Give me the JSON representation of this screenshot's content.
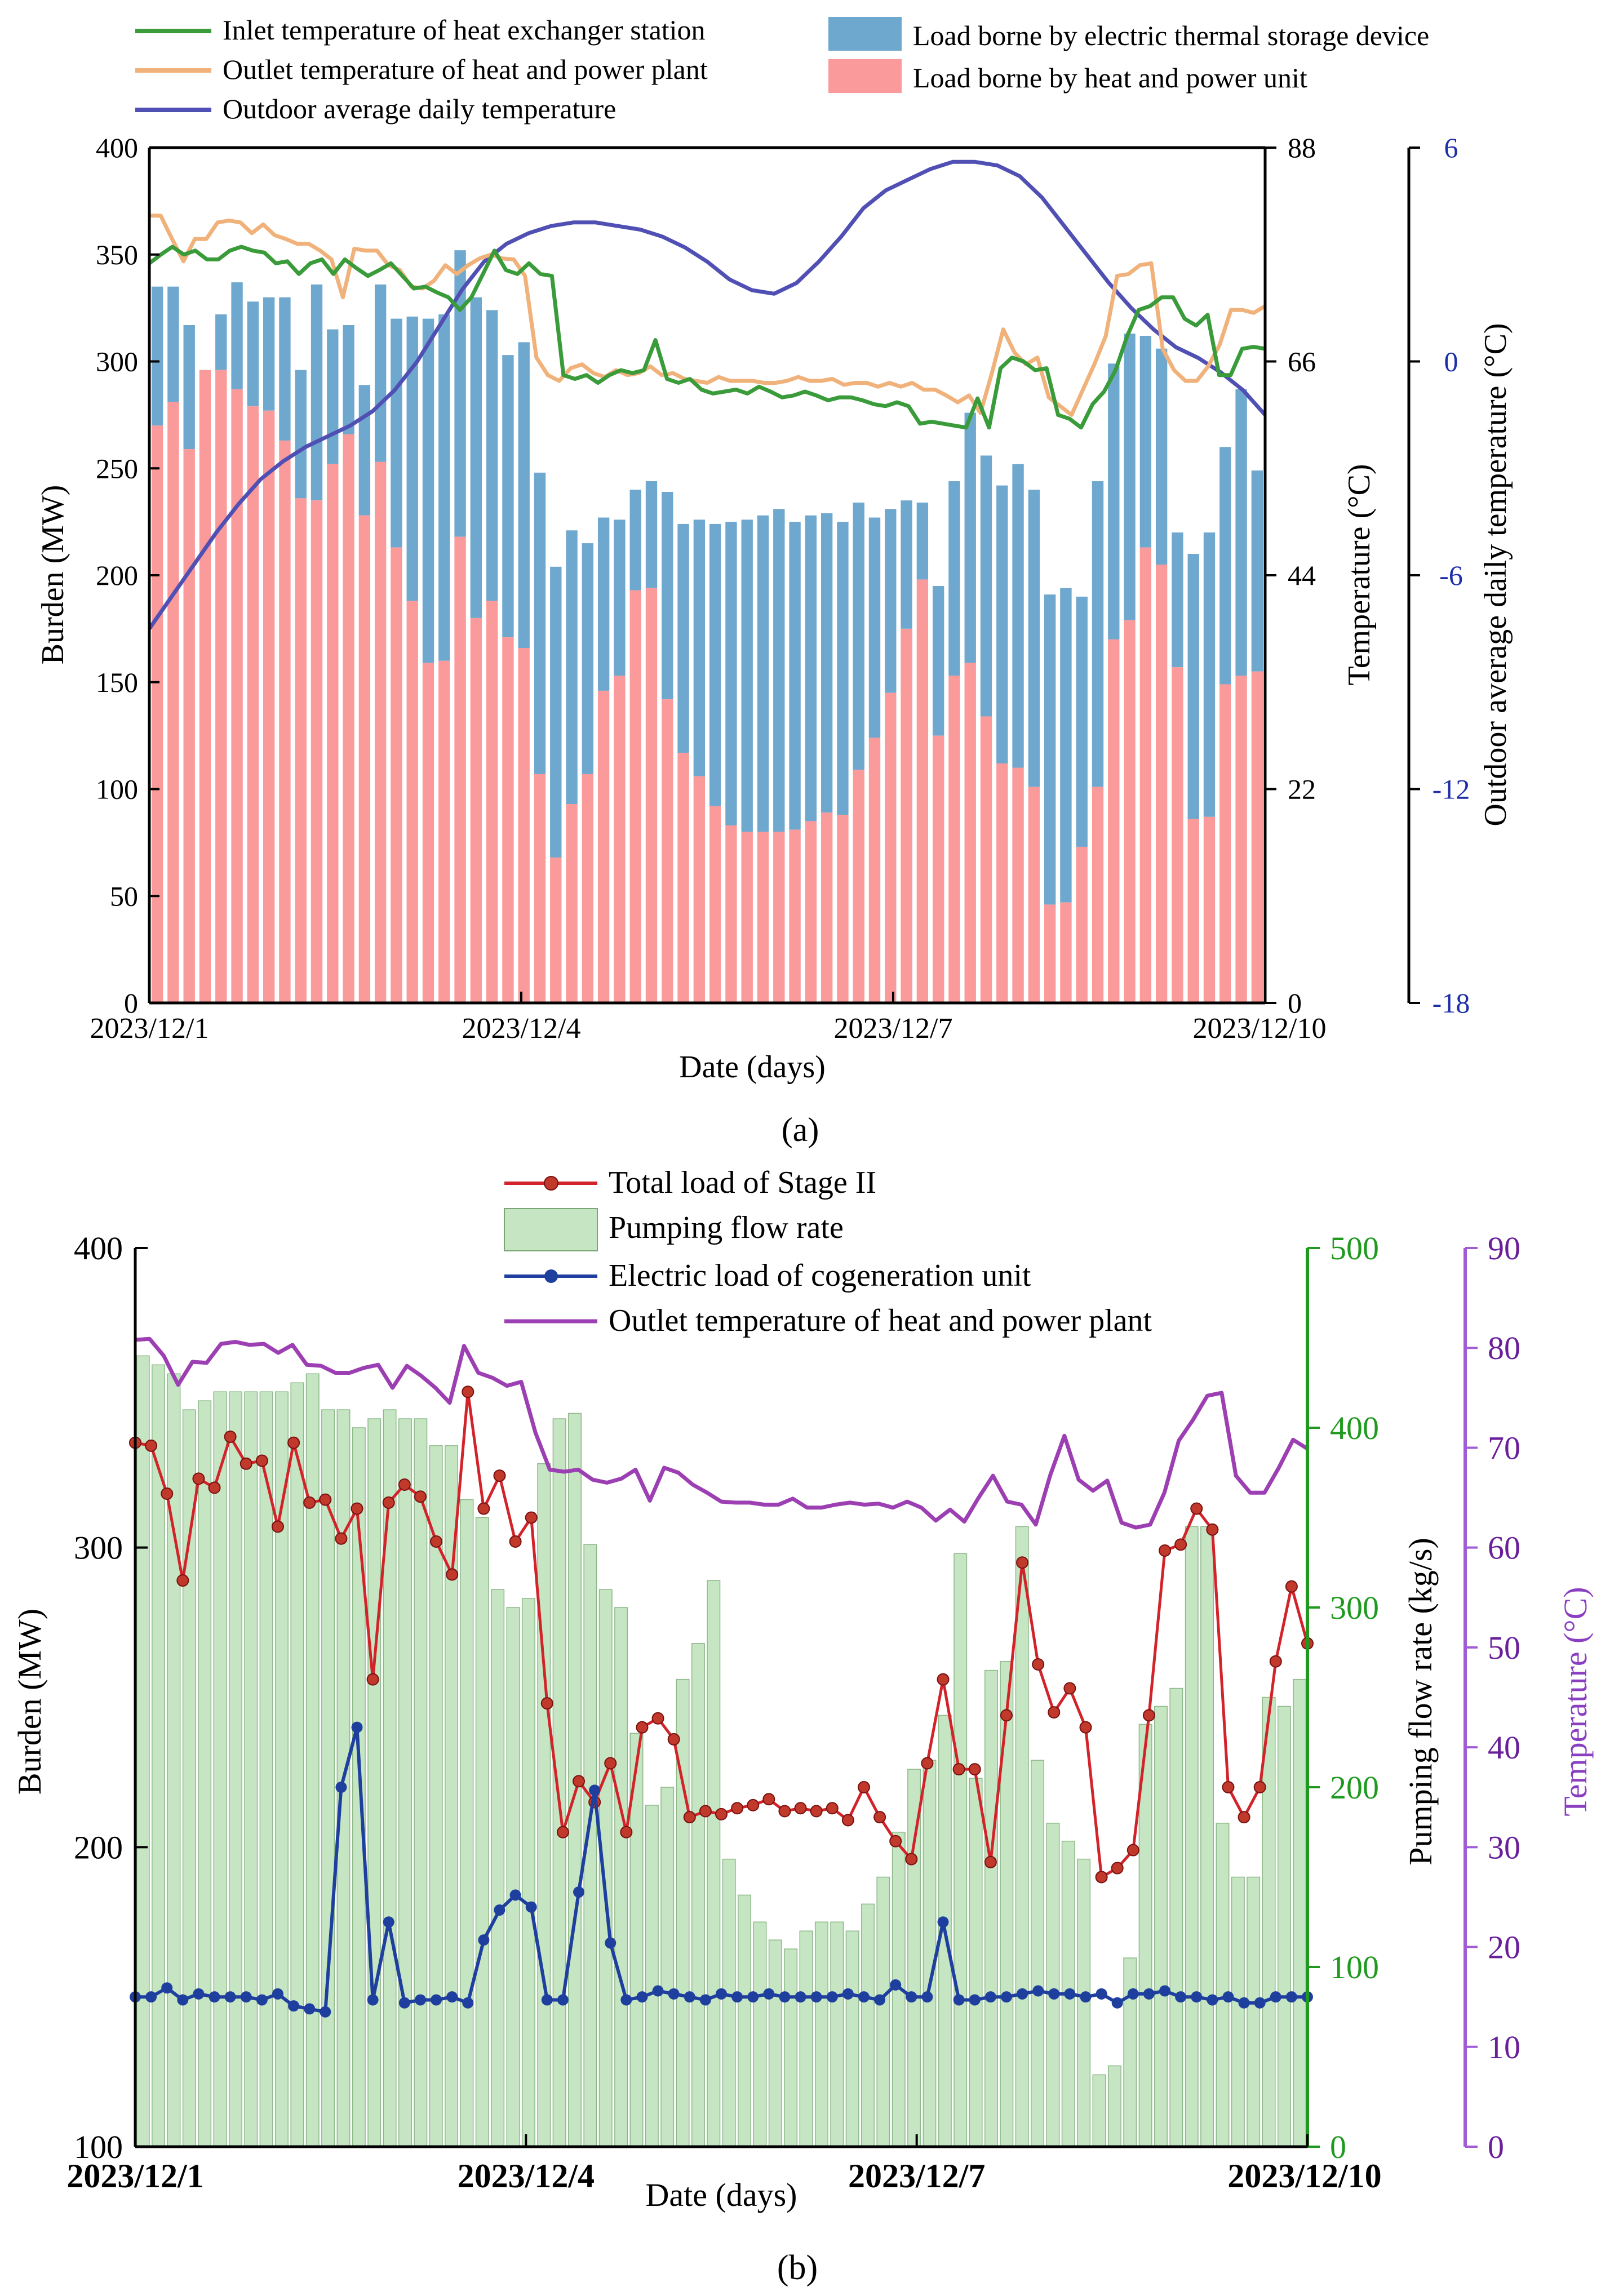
{
  "figure_labels": {
    "a": "(a)",
    "b": "(b)"
  },
  "chart_data": [
    {
      "type": "bar",
      "panel": "a",
      "title": "",
      "xlabel": "Date (days)",
      "ylabel": "Burden (MW)",
      "y2label": "Temperature (°C)",
      "y3label": "Outdoor average daily temperature (°C)",
      "x_ticks": [
        "2023/12/1",
        "2023/12/4",
        "2023/12/7",
        "2023/12/10"
      ],
      "ylim": [
        0,
        400
      ],
      "y_ticks": [
        0,
        50,
        100,
        150,
        200,
        250,
        300,
        350,
        400
      ],
      "y2lim": [
        0,
        88
      ],
      "y2_ticks": [
        0,
        22,
        44,
        66,
        88
      ],
      "y3lim": [
        -18,
        6
      ],
      "y3_ticks": [
        -18,
        -12,
        -6,
        0,
        6
      ],
      "legend": [
        {
          "label": "Inlet temperature of heat exchanger station",
          "kind": "line",
          "color": "#3a9b3a"
        },
        {
          "label": "Outlet temperature of heat and power plant",
          "kind": "line",
          "color": "#f0b27a"
        },
        {
          "label": "Outdoor average daily temperature",
          "kind": "line",
          "color": "#5050b4"
        },
        {
          "label": "Load borne by electric thermal storage device",
          "kind": "bar",
          "color": "#6fa8ce"
        },
        {
          "label": "Load borne by heat and power unit",
          "kind": "bar",
          "color": "#fb9a9a"
        }
      ],
      "series": [
        {
          "name": "Load borne by heat and power unit",
          "axis": "y",
          "stack": 0,
          "color": "#fb9a9a",
          "values": [
            270,
            281,
            259,
            296,
            296,
            287,
            279,
            277,
            263,
            236,
            235,
            252,
            266,
            228,
            253,
            213,
            188,
            159,
            160,
            218,
            180,
            188,
            171,
            166,
            107,
            68,
            93,
            107,
            146,
            153,
            193,
            194,
            142,
            117,
            106,
            92,
            83,
            80,
            80,
            80,
            81,
            85,
            89,
            88,
            109,
            124,
            145,
            175,
            198,
            125,
            153,
            159,
            134,
            112,
            110,
            101,
            46,
            47,
            73,
            101,
            170,
            179,
            213,
            205,
            157,
            86,
            87,
            149,
            153,
            155
          ]
        },
        {
          "name": "Load borne by electric thermal storage device",
          "axis": "y",
          "stack": 1,
          "color": "#6fa8ce",
          "values": [
            65,
            54,
            58,
            -7,
            26,
            50,
            49,
            53,
            67,
            60,
            101,
            63,
            51,
            61,
            83,
            107,
            133,
            161,
            162,
            134,
            150,
            136,
            132,
            143,
            141,
            136,
            128,
            108,
            81,
            73,
            47,
            50,
            97,
            107,
            120,
            132,
            142,
            146,
            148,
            151,
            144,
            143,
            140,
            137,
            125,
            103,
            86,
            60,
            36,
            70,
            91,
            117,
            122,
            130,
            142,
            139,
            145,
            147,
            117,
            143,
            129,
            134,
            99,
            101,
            63,
            124,
            133,
            111,
            134,
            94
          ]
        },
        {
          "name": "Inlet temperature of heat exchanger station",
          "axis": "y2",
          "type": "line",
          "color": "#3a9b3a",
          "values": [
            76.1,
            77.0,
            77.8,
            77.0,
            77.4,
            76.5,
            76.5,
            77.4,
            77.8,
            77.4,
            77.2,
            76.1,
            76.3,
            75.0,
            76.1,
            76.5,
            75.0,
            76.5,
            75.6,
            74.8,
            75.4,
            76.1,
            74.8,
            73.5,
            73.7,
            73.1,
            72.6,
            71.3,
            72.6,
            75.0,
            77.4,
            75.4,
            75.0,
            76.1,
            75.0,
            74.8,
            64.6,
            64.2,
            64.6,
            63.8,
            64.6,
            65.1,
            64.8,
            65.1,
            68.2,
            64.2,
            63.8,
            64.2,
            63.1,
            62.7,
            62.9,
            63.1,
            62.7,
            63.4,
            62.9,
            62.3,
            62.5,
            62.9,
            62.5,
            62.0,
            62.3,
            62.3,
            62.0,
            61.6,
            61.4,
            61.8,
            61.4,
            59.6,
            59.8,
            59.6,
            59.4,
            59.2,
            62.2,
            59.2,
            65.3,
            66.4,
            66.0,
            65.1,
            65.3,
            60.5,
            60.1,
            59.2,
            61.6,
            62.9,
            65.1,
            68.6,
            71.3,
            71.7,
            72.6,
            72.6,
            70.4,
            69.7,
            70.8,
            64.6,
            64.6,
            67.3,
            67.5,
            67.3
          ]
        },
        {
          "name": "Outlet temperature of heat and power plant",
          "axis": "y2",
          "type": "line",
          "color": "#f0b27a",
          "values": [
            81.0,
            81.0,
            78.6,
            76.3,
            78.6,
            78.6,
            80.3,
            80.5,
            80.3,
            79.2,
            80.1,
            79.0,
            78.6,
            78.1,
            78.1,
            77.4,
            76.5,
            72.6,
            77.6,
            77.4,
            77.4,
            75.9,
            75.4,
            73.7,
            73.5,
            74.3,
            75.9,
            75.0,
            75.9,
            76.6,
            77.0,
            76.6,
            76.5,
            74.8,
            66.4,
            64.6,
            64.0,
            65.3,
            65.7,
            64.8,
            64.4,
            65.1,
            64.6,
            64.8,
            65.5,
            64.6,
            64.8,
            64.2,
            64.0,
            63.8,
            64.4,
            64.0,
            64.0,
            64.0,
            63.8,
            63.8,
            64.0,
            64.4,
            64.0,
            64.0,
            64.2,
            63.6,
            63.8,
            63.8,
            63.4,
            63.8,
            63.4,
            63.8,
            63.1,
            63.1,
            62.5,
            61.8,
            62.5,
            60.7,
            64.8,
            69.3,
            66.9,
            65.7,
            66.4,
            62.3,
            61.4,
            60.5,
            63.1,
            65.7,
            68.6,
            74.8,
            75.0,
            75.9,
            76.1,
            67.3,
            65.1,
            64.0,
            64.0,
            65.5,
            67.7,
            71.3,
            71.3,
            71.0,
            71.7
          ]
        },
        {
          "name": "Outdoor average daily temperature",
          "axis": "y3",
          "type": "line",
          "color": "#5050b4",
          "values": [
            -7.5,
            -6.6,
            -5.7,
            -4.8,
            -4.0,
            -3.3,
            -2.8,
            -2.4,
            -2.1,
            -1.8,
            -1.4,
            -0.8,
            0.0,
            1.0,
            2.0,
            2.8,
            3.3,
            3.6,
            3.8,
            3.9,
            3.9,
            3.8,
            3.7,
            3.5,
            3.2,
            2.8,
            2.3,
            2.0,
            1.9,
            2.2,
            2.8,
            3.5,
            4.3,
            4.8,
            5.1,
            5.4,
            5.6,
            5.6,
            5.5,
            5.2,
            4.6,
            3.8,
            3.0,
            2.2,
            1.5,
            0.9,
            0.4,
            0.1,
            -0.3,
            -0.8,
            -1.5
          ]
        }
      ]
    },
    {
      "type": "bar",
      "panel": "b",
      "title": "",
      "xlabel": "Date (days)",
      "ylabel": "Burden (MW)",
      "y2label": "Pumping flow rate  (kg/s)",
      "y3label": "Temperature  (°C)",
      "x_ticks": [
        "2023/12/1",
        "2023/12/4",
        "2023/12/7",
        "2023/12/10"
      ],
      "ylim": [
        100,
        400
      ],
      "y_ticks": [
        100,
        200,
        300,
        400
      ],
      "y2lim": [
        0,
        500
      ],
      "y2_ticks": [
        0,
        100,
        200,
        300,
        400,
        500
      ],
      "y3lim": [
        0,
        90
      ],
      "y3_ticks": [
        0,
        10,
        20,
        30,
        40,
        50,
        60,
        70,
        80,
        90
      ],
      "legend": [
        {
          "label": "Total load of Stage II",
          "kind": "line-dot",
          "color": "#d2232a"
        },
        {
          "label": "Pumping flow rate",
          "kind": "bar",
          "color": "#c6e6c3"
        },
        {
          "label": "Electric load of cogeneration unit",
          "kind": "line-dot",
          "color": "#1f3f9f"
        },
        {
          "label": "Outlet temperature of heat and power plant",
          "kind": "line",
          "color": "#9c3fb2"
        }
      ],
      "series": [
        {
          "name": "Pumping flow rate",
          "axis": "y2",
          "color": "#c6e6c3",
          "values": [
            440,
            435,
            430,
            410,
            415,
            420,
            420,
            420,
            420,
            420,
            425,
            430,
            410,
            410,
            400,
            405,
            410,
            405,
            405,
            390,
            390,
            360,
            350,
            310,
            300,
            305,
            380,
            405,
            408,
            335,
            310,
            300,
            230,
            190,
            200,
            260,
            280,
            315,
            160,
            140,
            125,
            115,
            110,
            120,
            125,
            125,
            120,
            135,
            150,
            175,
            210,
            215,
            240,
            330,
            205,
            265,
            270,
            345,
            215,
            180,
            170,
            160,
            40,
            45,
            105,
            235,
            245,
            255,
            345,
            345,
            180,
            150,
            150,
            250,
            245,
            260
          ]
        },
        {
          "name": "Total load of Stage II",
          "axis": "y",
          "type": "line",
          "color": "#d2232a",
          "values": [
            335,
            334,
            318,
            289,
            323,
            320,
            337,
            328,
            329,
            307,
            335,
            315,
            316,
            303,
            313,
            256,
            315,
            321,
            317,
            302,
            291,
            352,
            313,
            324,
            302,
            310,
            248,
            205,
            222,
            215,
            228,
            205,
            240,
            243,
            236,
            210,
            212,
            211,
            213,
            214,
            216,
            212,
            213,
            212,
            213,
            209,
            220,
            210,
            202,
            196,
            228,
            256,
            226,
            226,
            195,
            244,
            295,
            261,
            245,
            253,
            240,
            190,
            193,
            199,
            244,
            299,
            301,
            313,
            306,
            220,
            210,
            220,
            262,
            287,
            268
          ]
        },
        {
          "name": "Electric load of cogeneration unit",
          "axis": "y",
          "type": "line",
          "color": "#1f3f9f",
          "values": [
            150,
            150,
            153,
            149,
            151,
            150,
            150,
            150,
            149,
            151,
            147,
            146,
            145,
            220,
            240,
            149,
            175,
            148,
            149,
            149,
            150,
            148,
            169,
            179,
            184,
            180,
            149,
            149,
            185,
            219,
            168,
            149,
            150,
            152,
            151,
            150,
            149,
            151,
            150,
            150,
            151,
            150,
            150,
            150,
            150,
            151,
            150,
            149,
            154,
            150,
            150,
            175,
            149,
            149,
            150,
            150,
            151,
            152,
            151,
            151,
            150,
            151,
            148,
            151,
            151,
            152,
            150,
            150,
            149,
            150,
            148,
            148,
            150,
            150,
            150
          ]
        },
        {
          "name": "Outlet temperature of heat and power plant",
          "axis": "y3",
          "type": "line",
          "color": "#9c3fb2",
          "values": [
            80.8,
            80.9,
            79.2,
            76.3,
            78.6,
            78.5,
            80.4,
            80.6,
            80.3,
            80.4,
            79.5,
            80.3,
            78.3,
            78.2,
            77.5,
            77.5,
            78.0,
            78.3,
            76.0,
            78.2,
            77.2,
            76.0,
            74.5,
            80.2,
            77.5,
            77.0,
            76.2,
            76.6,
            71.5,
            67.8,
            67.6,
            67.8,
            66.8,
            66.5,
            66.9,
            67.8,
            64.7,
            68.0,
            67.5,
            66.3,
            65.5,
            64.6,
            64.5,
            64.5,
            64.3,
            64.3,
            64.9,
            64.0,
            64.0,
            64.3,
            64.5,
            64.3,
            64.4,
            64.0,
            64.6,
            64.0,
            62.7,
            63.8,
            62.6,
            65.0,
            67.2,
            64.6,
            64.3,
            62.3,
            67.2,
            71.2,
            66.8,
            65.7,
            66.7,
            62.5,
            62.0,
            62.3,
            65.5,
            70.7,
            72.8,
            75.2,
            75.5,
            67.2,
            65.5,
            65.5,
            68.0,
            70.8,
            69.9
          ]
        }
      ]
    }
  ]
}
